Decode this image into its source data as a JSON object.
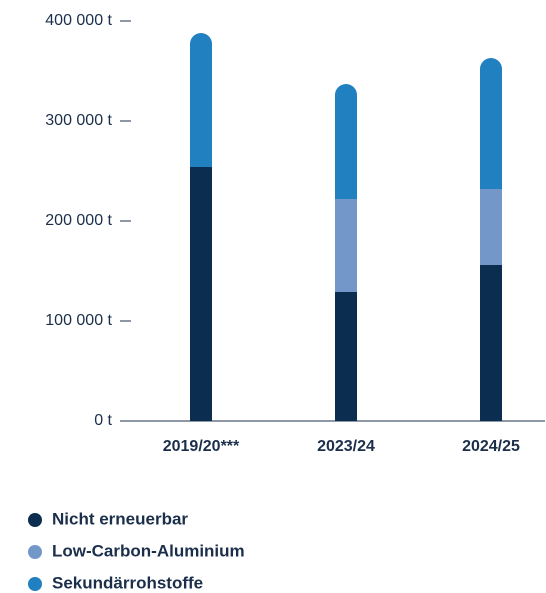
{
  "chart_data": {
    "type": "stacked_bar",
    "categories": [
      "2019/20***",
      "2023/24",
      "2024/25"
    ],
    "series": [
      {
        "name": "Nicht erneuerbar",
        "color": "#0b2d50",
        "values": [
          254000,
          129000,
          156000
        ]
      },
      {
        "name": "Low-Carbon-Aluminium",
        "color": "#7297c8",
        "values": [
          0,
          93000,
          76000
        ]
      },
      {
        "name": "Sekundärrohstoffe",
        "color": "#2080c0",
        "values": [
          134000,
          115000,
          131000
        ]
      }
    ],
    "ylim": [
      0,
      400000
    ],
    "yticks": [
      {
        "value": 0,
        "label": "0 t"
      },
      {
        "value": 100000,
        "label": "100 000 t"
      },
      {
        "value": 200000,
        "label": "200 000 t"
      },
      {
        "value": 300000,
        "label": "300 000 t"
      },
      {
        "value": 400000,
        "label": "400 000 t"
      }
    ]
  }
}
